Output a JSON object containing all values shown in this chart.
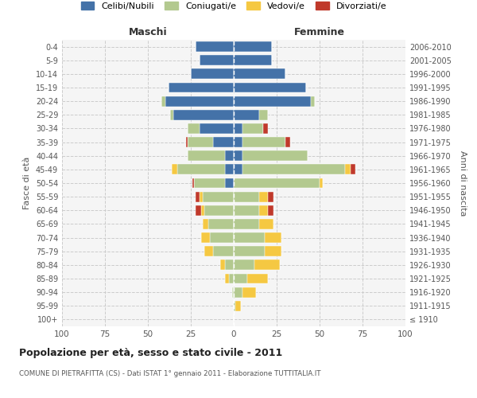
{
  "age_groups": [
    "100+",
    "95-99",
    "90-94",
    "85-89",
    "80-84",
    "75-79",
    "70-74",
    "65-69",
    "60-64",
    "55-59",
    "50-54",
    "45-49",
    "40-44",
    "35-39",
    "30-34",
    "25-29",
    "20-24",
    "15-19",
    "10-14",
    "5-9",
    "0-4"
  ],
  "birth_years": [
    "≤ 1910",
    "1911-1915",
    "1916-1920",
    "1921-1925",
    "1926-1930",
    "1931-1935",
    "1936-1940",
    "1941-1945",
    "1946-1950",
    "1951-1955",
    "1956-1960",
    "1961-1965",
    "1966-1970",
    "1971-1975",
    "1976-1980",
    "1981-1985",
    "1986-1990",
    "1991-1995",
    "1996-2000",
    "2001-2005",
    "2006-2010"
  ],
  "male": {
    "celibi": [
      0,
      0,
      0,
      0,
      0,
      0,
      0,
      0,
      0,
      0,
      5,
      5,
      5,
      12,
      20,
      35,
      40,
      38,
      25,
      20,
      22
    ],
    "coniugati": [
      0,
      0,
      1,
      3,
      5,
      12,
      14,
      15,
      17,
      18,
      18,
      28,
      22,
      15,
      7,
      2,
      2,
      0,
      0,
      0,
      0
    ],
    "vedovi": [
      0,
      0,
      0,
      2,
      3,
      5,
      5,
      3,
      2,
      2,
      0,
      3,
      0,
      0,
      0,
      0,
      0,
      0,
      0,
      0,
      0
    ],
    "divorziati": [
      0,
      0,
      0,
      0,
      0,
      0,
      0,
      0,
      3,
      2,
      1,
      0,
      0,
      1,
      0,
      0,
      0,
      0,
      0,
      0,
      0
    ]
  },
  "female": {
    "nubili": [
      0,
      0,
      0,
      0,
      0,
      0,
      0,
      0,
      0,
      0,
      0,
      5,
      5,
      5,
      5,
      15,
      45,
      42,
      30,
      22,
      22
    ],
    "coniugate": [
      0,
      1,
      5,
      8,
      12,
      18,
      18,
      15,
      15,
      15,
      50,
      60,
      38,
      25,
      12,
      5,
      2,
      0,
      0,
      0,
      0
    ],
    "vedove": [
      0,
      3,
      8,
      12,
      15,
      10,
      10,
      8,
      5,
      5,
      2,
      3,
      0,
      0,
      0,
      0,
      0,
      0,
      0,
      0,
      0
    ],
    "divorziate": [
      0,
      0,
      0,
      0,
      0,
      0,
      0,
      0,
      3,
      3,
      0,
      3,
      0,
      3,
      3,
      0,
      0,
      0,
      0,
      0,
      0
    ]
  },
  "colors": {
    "celibi": "#4472a8",
    "coniugati": "#b3c98f",
    "vedovi": "#f5c842",
    "divorziati": "#c0392b"
  },
  "xlim": 100,
  "title": "Popolazione per età, sesso e stato civile - 2011",
  "subtitle": "COMUNE DI PIETRAFITTA (CS) - Dati ISTAT 1° gennaio 2011 - Elaborazione TUTTITALIA.IT",
  "ylabel_left": "Fasce di età",
  "ylabel_right": "Anni di nascita",
  "bg_color": "#f5f5f5",
  "grid_color": "#cccccc"
}
